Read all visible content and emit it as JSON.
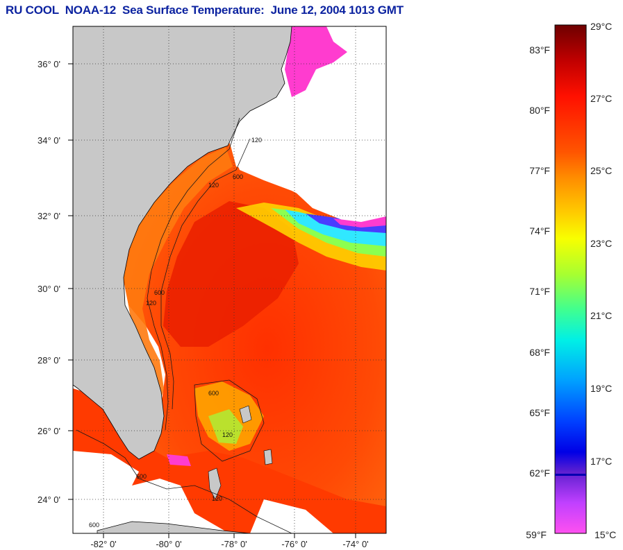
{
  "title": "RU COOL  NOAA-12  Sea Surface Temperature:  June 12, 2004 1013 GMT",
  "map": {
    "lat_labels": [
      "36° 0'",
      "34° 0'",
      "32° 0'",
      "30° 0'",
      "28° 0'",
      "26° 0'",
      "24° 0'"
    ],
    "lon_labels": [
      "-82° 0'",
      "-80° 0'",
      "-78° 0'",
      "-76° 0'",
      "-74° 0'"
    ],
    "land_color": "#c8c8c8",
    "cloud_color": "#ffffff",
    "contour_labels": [
      "120",
      "600",
      "120",
      "600",
      "120",
      "600",
      "120",
      "600",
      "120",
      "600"
    ]
  },
  "colorbar": {
    "celsius_labels": [
      "29°C",
      "27°C",
      "25°C",
      "23°C",
      "21°C",
      "19°C",
      "17°C",
      "15°C"
    ],
    "fahrenheit_labels": [
      "83°F",
      "80°F",
      "77°F",
      "74°F",
      "71°F",
      "68°F",
      "65°F",
      "62°F",
      "59°F"
    ],
    "colors": [
      "#7a0000",
      "#c40000",
      "#ff1400",
      "#ff5a00",
      "#ff9600",
      "#ffd200",
      "#f0ff00",
      "#96ff3c",
      "#28ffb4",
      "#00e6ff",
      "#0078ff",
      "#0000ff",
      "#5a1ee6",
      "#ff50ff"
    ]
  }
}
